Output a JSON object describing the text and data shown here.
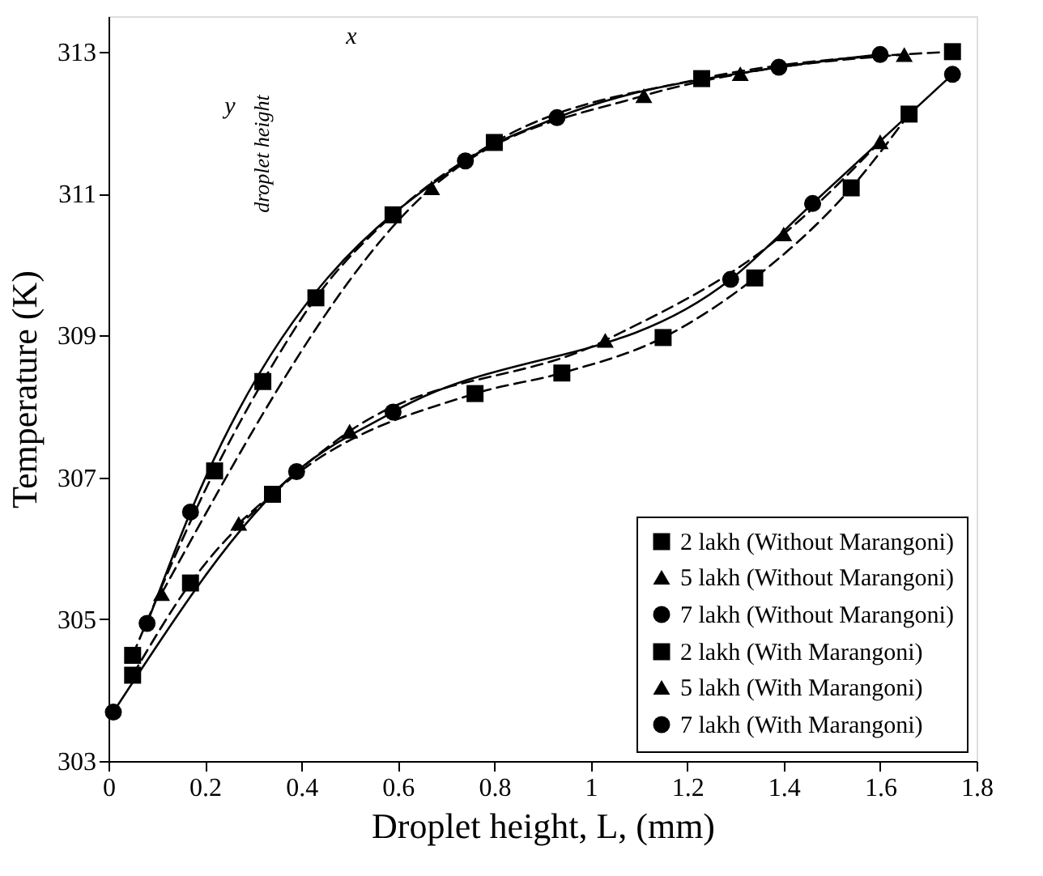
{
  "chart_data": {
    "type": "line",
    "xlabel": "Droplet height, L, (mm)",
    "ylabel": "Temperature (K)",
    "xlim": [
      0,
      1.8
    ],
    "ylim": [
      303,
      313.5
    ],
    "xticks": [
      0,
      0.2,
      0.4,
      0.6,
      0.8,
      1,
      1.2,
      1.4,
      1.6,
      1.8
    ],
    "yticks": [
      303,
      305,
      307,
      309,
      311,
      313
    ],
    "grid": false,
    "legend": "bottom right",
    "annotations": [
      "x",
      "y",
      "droplet height"
    ],
    "series": [
      {
        "name": "2 lakh (Without Marangoni)",
        "color": "#000000",
        "marker": "square",
        "line_style": "dashed",
        "x": [
          0.05,
          0.22,
          0.32,
          0.43,
          0.59,
          0.8,
          1.23,
          1.75
        ],
        "values": [
          304.49,
          307.09,
          308.35,
          309.53,
          310.7,
          311.72,
          312.62,
          313.0
        ]
      },
      {
        "name": "5 lakh (Without Marangoni)",
        "color": "#000000",
        "marker": "triangle",
        "line_style": "dashed",
        "x": [
          0.11,
          0.67,
          1.11,
          1.31,
          1.65
        ],
        "values": [
          305.36,
          311.08,
          312.38,
          312.69,
          312.96
        ]
      },
      {
        "name": "7 lakh (Without Marangoni)",
        "color": "#000000",
        "marker": "circle",
        "line_style": "solid",
        "x": [
          0.08,
          0.17,
          0.74,
          0.93,
          1.39,
          1.6
        ],
        "values": [
          304.94,
          306.51,
          311.46,
          312.07,
          312.78,
          312.96
        ]
      },
      {
        "name": "2 lakh (With Marangoni)",
        "color": "#000000",
        "marker": "square",
        "line_style": "dashed",
        "x": [
          0.05,
          0.17,
          0.34,
          0.76,
          0.94,
          1.15,
          1.34,
          1.54,
          1.66
        ],
        "values": [
          304.21,
          305.51,
          306.76,
          308.18,
          308.47,
          308.97,
          309.81,
          311.08,
          312.12
        ]
      },
      {
        "name": "5 lakh (With Marangoni)",
        "color": "#000000",
        "marker": "triangle",
        "line_style": "dashed",
        "x": [
          0.27,
          0.5,
          1.03,
          1.4,
          1.6
        ],
        "values": [
          306.35,
          307.65,
          308.93,
          310.43,
          311.73
        ]
      },
      {
        "name": "7 lakh (With Marangoni)",
        "color": "#000000",
        "marker": "circle",
        "line_style": "solid",
        "x": [
          0.01,
          0.39,
          0.59,
          1.29,
          1.46,
          1.75
        ],
        "values": [
          303.69,
          307.08,
          307.92,
          309.79,
          310.86,
          312.68
        ]
      }
    ]
  }
}
